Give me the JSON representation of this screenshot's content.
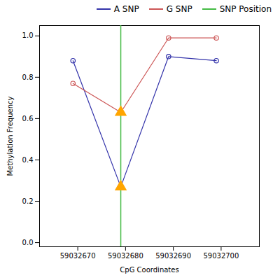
{
  "chart_data": {
    "type": "line",
    "x_label": "CpG Coordinates",
    "y_label": "Methylation Frequency",
    "x": [
      59032669,
      59032679,
      59032689,
      59032699
    ],
    "series": [
      {
        "name": "A SNP",
        "color": "#3333AA",
        "marker": "circle",
        "values": [
          0.88,
          0.27,
          0.9,
          0.88
        ]
      },
      {
        "name": "G SNP",
        "color": "#CC5555",
        "marker": "circle",
        "values": [
          0.77,
          0.63,
          0.99,
          0.99
        ]
      }
    ],
    "vline": {
      "x": 59032679,
      "name": "SNP Position",
      "color": "#44BB44"
    },
    "highlight": {
      "x": 59032679,
      "color": "#FFA500",
      "marker": "triangle"
    },
    "xlim": [
      59032662,
      59032708
    ],
    "ylim": [
      -0.02,
      1.05
    ],
    "xticks": [
      59032670,
      59032680,
      59032690,
      59032700
    ],
    "yticks": [
      {
        "value": 0,
        "label": "0.0"
      },
      0.2,
      0.4,
      0.6,
      0.8,
      {
        "value": 1,
        "label": "1.0"
      }
    ],
    "grid": false,
    "legend": "right"
  }
}
